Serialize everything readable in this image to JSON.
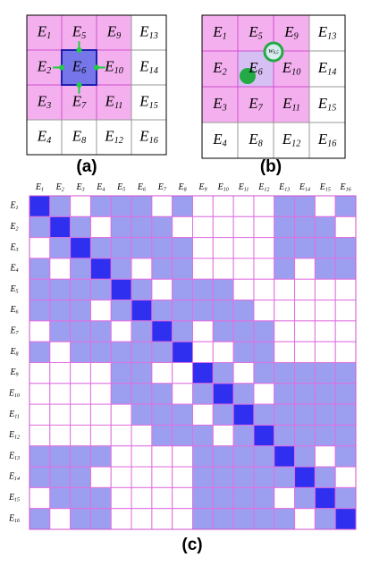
{
  "panel_a": {
    "caption": "(a)",
    "cells": [
      {
        "base": "E",
        "sub": "1"
      },
      {
        "base": "E",
        "sub": "2"
      },
      {
        "base": "E",
        "sub": "3"
      },
      {
        "base": "E",
        "sub": "4"
      },
      {
        "base": "E",
        "sub": "5"
      },
      {
        "base": "E",
        "sub": "6"
      },
      {
        "base": "E",
        "sub": "7"
      },
      {
        "base": "E",
        "sub": "8"
      },
      {
        "base": "E",
        "sub": "9"
      },
      {
        "base": "E",
        "sub": "10"
      },
      {
        "base": "E",
        "sub": "11"
      },
      {
        "base": "E",
        "sub": "12"
      },
      {
        "base": "E",
        "sub": "13"
      },
      {
        "base": "E",
        "sub": "14"
      },
      {
        "base": "E",
        "sub": "15"
      },
      {
        "base": "E",
        "sub": "16"
      }
    ]
  },
  "panel_b": {
    "caption": "(b)",
    "cells": [
      {
        "base": "E",
        "sub": "1"
      },
      {
        "base": "E",
        "sub": "2"
      },
      {
        "base": "E",
        "sub": "3"
      },
      {
        "base": "E",
        "sub": "4"
      },
      {
        "base": "E",
        "sub": "5"
      },
      {
        "base": "E",
        "sub": "6"
      },
      {
        "base": "E",
        "sub": "7"
      },
      {
        "base": "E",
        "sub": "8"
      },
      {
        "base": "E",
        "sub": "9"
      },
      {
        "base": "E",
        "sub": "10"
      },
      {
        "base": "E",
        "sub": "11"
      },
      {
        "base": "E",
        "sub": "12"
      },
      {
        "base": "E",
        "sub": "13"
      },
      {
        "base": "E",
        "sub": "14"
      },
      {
        "base": "E",
        "sub": "15"
      },
      {
        "base": "E",
        "sub": "16"
      }
    ],
    "weight_label": {
      "base": "w",
      "sub": "6,5"
    }
  },
  "panel_c": {
    "caption": "(c)",
    "labels": [
      {
        "base": "E",
        "sub": "1"
      },
      {
        "base": "E",
        "sub": "2"
      },
      {
        "base": "E",
        "sub": "3"
      },
      {
        "base": "E",
        "sub": "4"
      },
      {
        "base": "E",
        "sub": "5"
      },
      {
        "base": "E",
        "sub": "6"
      },
      {
        "base": "E",
        "sub": "7"
      },
      {
        "base": "E",
        "sub": "8"
      },
      {
        "base": "E",
        "sub": "9"
      },
      {
        "base": "E",
        "sub": "10"
      },
      {
        "base": "E",
        "sub": "11"
      },
      {
        "base": "E",
        "sub": "12"
      },
      {
        "base": "E",
        "sub": "13"
      },
      {
        "base": "E",
        "sub": "14"
      },
      {
        "base": "E",
        "sub": "15"
      },
      {
        "base": "E",
        "sub": "16"
      }
    ],
    "matrix": [
      [
        2,
        1,
        0,
        1,
        1,
        1,
        0,
        1,
        0,
        0,
        0,
        0,
        1,
        1,
        0,
        1
      ],
      [
        1,
        2,
        1,
        0,
        1,
        1,
        1,
        0,
        0,
        0,
        0,
        0,
        1,
        1,
        1,
        0
      ],
      [
        0,
        1,
        2,
        1,
        1,
        1,
        1,
        1,
        0,
        0,
        0,
        0,
        1,
        1,
        1,
        1
      ],
      [
        1,
        0,
        1,
        2,
        1,
        0,
        1,
        1,
        0,
        0,
        0,
        0,
        1,
        0,
        1,
        1
      ],
      [
        1,
        1,
        1,
        1,
        2,
        1,
        0,
        1,
        1,
        1,
        0,
        0,
        0,
        0,
        0,
        0
      ],
      [
        1,
        1,
        1,
        0,
        1,
        2,
        1,
        1,
        1,
        1,
        1,
        0,
        0,
        0,
        0,
        0
      ],
      [
        0,
        1,
        1,
        1,
        0,
        1,
        2,
        1,
        0,
        1,
        1,
        1,
        0,
        0,
        0,
        0
      ],
      [
        1,
        0,
        1,
        1,
        1,
        1,
        1,
        2,
        0,
        0,
        1,
        1,
        0,
        0,
        0,
        0
      ],
      [
        0,
        0,
        0,
        0,
        1,
        1,
        0,
        0,
        2,
        1,
        0,
        1,
        1,
        1,
        1,
        1
      ],
      [
        0,
        0,
        0,
        0,
        1,
        1,
        1,
        0,
        1,
        2,
        1,
        0,
        1,
        1,
        1,
        1
      ],
      [
        0,
        0,
        0,
        0,
        0,
        1,
        1,
        1,
        0,
        1,
        2,
        1,
        1,
        1,
        1,
        1
      ],
      [
        0,
        0,
        0,
        0,
        0,
        0,
        1,
        1,
        1,
        0,
        1,
        2,
        1,
        1,
        1,
        1
      ],
      [
        1,
        1,
        1,
        1,
        0,
        0,
        0,
        0,
        1,
        1,
        1,
        1,
        2,
        1,
        0,
        1
      ],
      [
        1,
        1,
        1,
        0,
        0,
        0,
        0,
        0,
        1,
        1,
        1,
        1,
        1,
        2,
        1,
        0
      ],
      [
        0,
        1,
        1,
        1,
        0,
        0,
        0,
        0,
        1,
        1,
        1,
        1,
        0,
        1,
        2,
        1
      ],
      [
        1,
        0,
        1,
        1,
        0,
        0,
        0,
        0,
        1,
        1,
        1,
        1,
        1,
        0,
        1,
        2
      ]
    ]
  }
}
